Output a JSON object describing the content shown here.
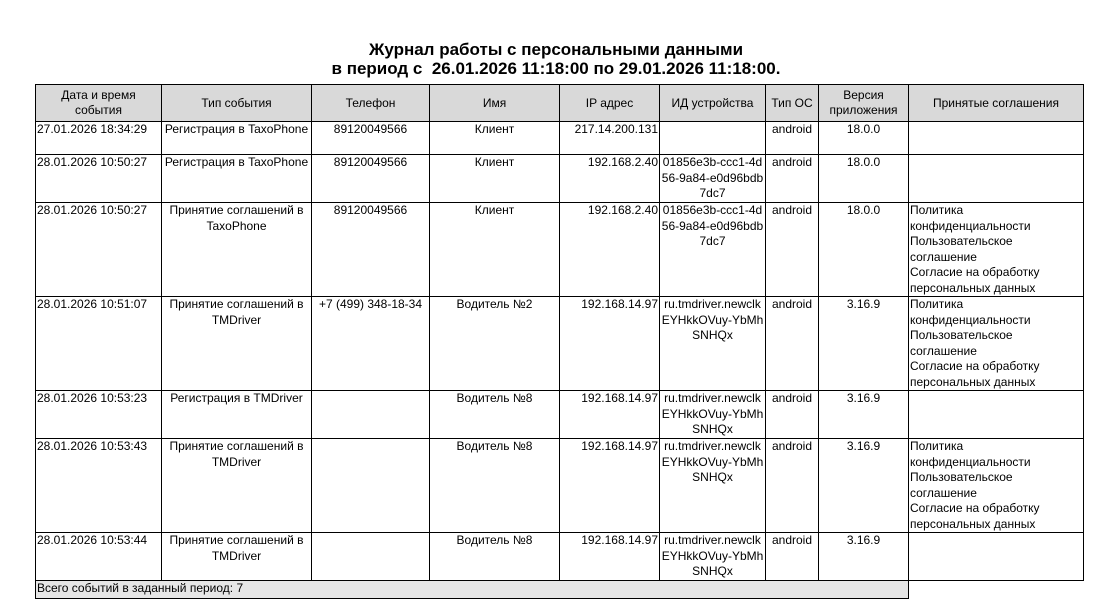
{
  "title_line1": "Журнал работы с персональными данными",
  "title_line2": "в период с  26.01.2026 11:18:00 по 29.01.2026 11:18:00.",
  "columns": [
    "Дата и время события",
    "Тип события",
    "Телефон",
    "Имя",
    "IP адрес",
    "ИД устройства",
    "Тип ОС",
    "Версия приложения",
    "Принятые соглашения"
  ],
  "rows": [
    {
      "datetime": "27.01.2026 18:34:29",
      "event": "Регистрация в TaxoPhone",
      "phone": "89120049566",
      "name": "Клиент",
      "ip": "217.14.200.131",
      "device": "",
      "os": "android",
      "version": "18.0.0",
      "agreements": []
    },
    {
      "datetime": "28.01.2026 10:50:27",
      "event": "Регистрация в TaxoPhone",
      "phone": "89120049566",
      "name": "Клиент",
      "ip": "192.168.2.40",
      "device": "01856e3b-ccc1-4d56-9a84-e0d96bdb7dc7",
      "os": "android",
      "version": "18.0.0",
      "agreements": []
    },
    {
      "datetime": "28.01.2026 10:50:27",
      "event": "Принятие соглашений в TaxoPhone",
      "phone": "89120049566",
      "name": "Клиент",
      "ip": "192.168.2.40",
      "device": "01856e3b-ccc1-4d56-9a84-e0d96bdb7dc7",
      "os": "android",
      "version": "18.0.0",
      "agreements": [
        "Политика конфиденциальности",
        "Пользовательское соглашение",
        "Согласие на обработку персональных данных"
      ]
    },
    {
      "datetime": "28.01.2026 10:51:07",
      "event": "Принятие соглашений в TMDriver",
      "phone": "+7 (499) 348-18-34",
      "name": "Водитель №2",
      "ip": "192.168.14.97",
      "device": "ru.tmdriver.newclkEYHkkOVuy-YbMhSNHQx",
      "os": "android",
      "version": "3.16.9",
      "agreements": [
        "Политика конфиденциальности",
        "Пользовательское соглашение",
        "Согласие на обработку персональных данных"
      ]
    },
    {
      "datetime": "28.01.2026 10:53:23",
      "event": "Регистрация в TMDriver",
      "phone": "",
      "name": "Водитель №8",
      "ip": "192.168.14.97",
      "device": "ru.tmdriver.newclkEYHkkOVuy-YbMhSNHQx",
      "os": "android",
      "version": "3.16.9",
      "agreements": []
    },
    {
      "datetime": "28.01.2026 10:53:43",
      "event": "Принятие соглашений в TMDriver",
      "phone": "",
      "name": "Водитель №8",
      "ip": "192.168.14.97",
      "device": "ru.tmdriver.newclkEYHkkOVuy-YbMhSNHQx",
      "os": "android",
      "version": "3.16.9",
      "agreements": [
        "Политика конфиденциальности",
        "Пользовательское соглашение",
        "Согласие на обработку персональных данных"
      ]
    },
    {
      "datetime": "28.01.2026 10:53:44",
      "event": "Принятие соглашений в TMDriver",
      "phone": "",
      "name": "Водитель №8",
      "ip": "192.168.14.97",
      "device": "ru.tmdriver.newclkEYHkkOVuy-YbMhSNHQx",
      "os": "android",
      "version": "3.16.9",
      "agreements": []
    }
  ],
  "footer": "Всего событий в заданный период: 7"
}
